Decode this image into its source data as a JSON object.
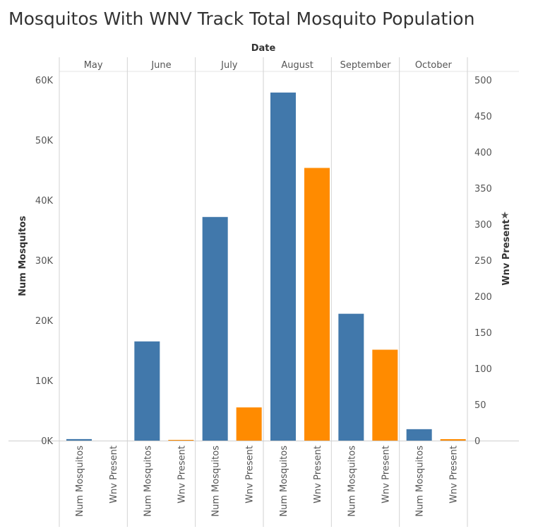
{
  "chart_data": {
    "type": "bar",
    "title": "Mosquitos With WNV Track Total Mosquito Population",
    "column_header": "Date",
    "categories": [
      "May",
      "June",
      "July",
      "August",
      "September",
      "October"
    ],
    "measures": [
      "Num Mosquitos",
      "Wnv Present"
    ],
    "series": [
      {
        "name": "Num Mosquitos",
        "axis": "left",
        "color": "#4178ab",
        "values": [
          250,
          16500,
          37200,
          57900,
          21100,
          1900
        ]
      },
      {
        "name": "Wnv Present",
        "axis": "right",
        "color": "#ff8b00",
        "values": [
          0,
          1,
          46,
          378,
          126,
          2
        ]
      }
    ],
    "ylabel": "Num Mosquitos",
    "ylim": [
      0,
      60000
    ],
    "yticks": [
      0,
      10000,
      20000,
      30000,
      40000,
      50000,
      60000
    ],
    "ytick_labels": [
      "0K",
      "10K",
      "20K",
      "30K",
      "40K",
      "50K",
      "60K"
    ],
    "y2label": "Wnv Present",
    "y2lim": [
      0,
      500
    ],
    "y2ticks": [
      0,
      50,
      100,
      150,
      200,
      250,
      300,
      350,
      400,
      450,
      500
    ],
    "y2tick_labels": [
      "0",
      "50",
      "100",
      "150",
      "200",
      "250",
      "300",
      "350",
      "400",
      "450",
      "500"
    ],
    "grid": false
  }
}
